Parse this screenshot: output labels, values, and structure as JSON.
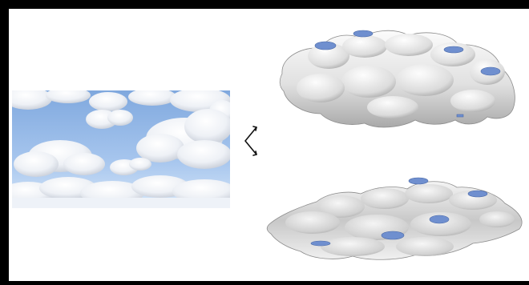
{
  "figure": {
    "photo_icon": "cloud-sky-photo",
    "arrow_icon": "double-headed-arrow-icon",
    "models": [
      "3d-cloud-surface-model-top",
      "3d-cloud-surface-model-bottom"
    ],
    "colors": {
      "sky_blue": "#8fb6e6",
      "cloud_white": "#f6f8fb",
      "mesh_gray": "#d9d9d9",
      "mesh_shadow": "#a7a7a7",
      "patch_blue": "#6f8fcf",
      "frame": "#000000"
    }
  }
}
